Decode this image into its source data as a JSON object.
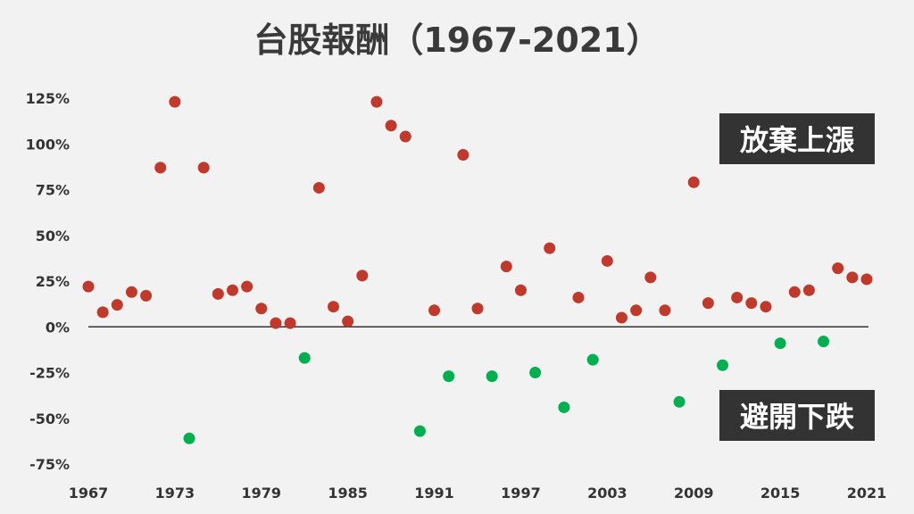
{
  "chart_data": {
    "type": "scatter",
    "title": "台股報酬（1967-2021）",
    "xlabel": "",
    "ylabel": "",
    "xlim": [
      1967,
      2021
    ],
    "ylim": [
      -75,
      125
    ],
    "x_ticks": [
      1967,
      1973,
      1979,
      1985,
      1991,
      1997,
      2003,
      2009,
      2015,
      2021
    ],
    "y_tick_labels": [
      {
        "v": 125,
        "label": "125%"
      },
      {
        "v": 100,
        "label": "100%"
      },
      {
        "v": 75,
        "label": "75%"
      },
      {
        "v": 50,
        "label": "50%"
      },
      {
        "v": 25,
        "label": "25%"
      },
      {
        "v": 0,
        "label": "0%"
      },
      {
        "v": -25,
        "label": "-25%"
      },
      {
        "v": -50,
        "label": "-50%"
      },
      {
        "v": -75,
        "label": "-75%"
      }
    ],
    "colors": {
      "positive": "#c0392b",
      "negative": "#00b050"
    },
    "annotations": {
      "up": "放棄上漲",
      "down": "避開下跌"
    },
    "points": [
      {
        "x": 1967,
        "y": 22
      },
      {
        "x": 1968,
        "y": 8
      },
      {
        "x": 1969,
        "y": 12
      },
      {
        "x": 1970,
        "y": 19
      },
      {
        "x": 1971,
        "y": 17
      },
      {
        "x": 1972,
        "y": 87
      },
      {
        "x": 1973,
        "y": 123
      },
      {
        "x": 1974,
        "y": -61
      },
      {
        "x": 1975,
        "y": 87
      },
      {
        "x": 1976,
        "y": 18
      },
      {
        "x": 1977,
        "y": 20
      },
      {
        "x": 1978,
        "y": 22
      },
      {
        "x": 1979,
        "y": 10
      },
      {
        "x": 1980,
        "y": 2
      },
      {
        "x": 1981,
        "y": 2
      },
      {
        "x": 1982,
        "y": -17
      },
      {
        "x": 1983,
        "y": 76
      },
      {
        "x": 1984,
        "y": 11
      },
      {
        "x": 1985,
        "y": 3
      },
      {
        "x": 1986,
        "y": 28
      },
      {
        "x": 1987,
        "y": 123
      },
      {
        "x": 1988,
        "y": 110
      },
      {
        "x": 1989,
        "y": 104
      },
      {
        "x": 1990,
        "y": -57
      },
      {
        "x": 1991,
        "y": 9
      },
      {
        "x": 1992,
        "y": -27
      },
      {
        "x": 1993,
        "y": 94
      },
      {
        "x": 1994,
        "y": 10
      },
      {
        "x": 1995,
        "y": -27
      },
      {
        "x": 1996,
        "y": 33
      },
      {
        "x": 1997,
        "y": 20
      },
      {
        "x": 1998,
        "y": -25
      },
      {
        "x": 1999,
        "y": 43
      },
      {
        "x": 2000,
        "y": -44
      },
      {
        "x": 2001,
        "y": 16
      },
      {
        "x": 2002,
        "y": -18
      },
      {
        "x": 2003,
        "y": 36
      },
      {
        "x": 2004,
        "y": 5
      },
      {
        "x": 2005,
        "y": 9
      },
      {
        "x": 2006,
        "y": 27
      },
      {
        "x": 2007,
        "y": 9
      },
      {
        "x": 2008,
        "y": -41
      },
      {
        "x": 2009,
        "y": 79
      },
      {
        "x": 2010,
        "y": 13
      },
      {
        "x": 2011,
        "y": -21
      },
      {
        "x": 2012,
        "y": 16
      },
      {
        "x": 2013,
        "y": 13
      },
      {
        "x": 2014,
        "y": 11
      },
      {
        "x": 2015,
        "y": -9
      },
      {
        "x": 2016,
        "y": 19
      },
      {
        "x": 2017,
        "y": 20
      },
      {
        "x": 2018,
        "y": -8
      },
      {
        "x": 2019,
        "y": 32
      },
      {
        "x": 2020,
        "y": 27
      },
      {
        "x": 2021,
        "y": 26
      }
    ]
  }
}
